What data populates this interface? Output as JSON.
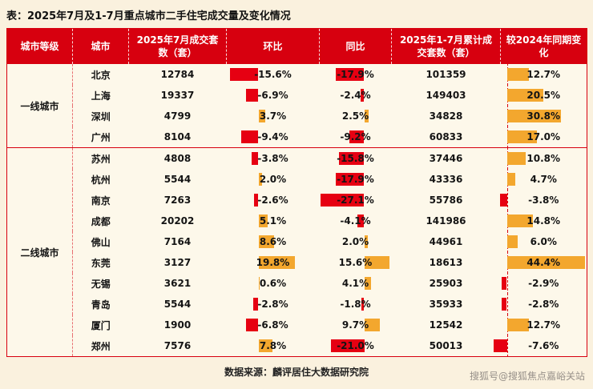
{
  "source": "数据来源：麟评居住大数据研究院",
  "watermark": "搜狐号@搜狐焦点嘉峪关站",
  "colors": {
    "header_red": "#d7000f",
    "bar_negative": "#e60012",
    "bar_positive": "#f3a72e",
    "background": "#faf1de"
  },
  "chart_data": {
    "type": "table",
    "title": "表：2025年7月及1-7月重点城市二手住宅成交量及变化情况",
    "columns": [
      "城市等级",
      "城市",
      "2025年7月成交套数（套）",
      "环比",
      "同比",
      "2025年1-7月累计成交套数（套）",
      "较2024年同期变化"
    ],
    "bar_value_unit": "%",
    "groups": [
      {
        "tier": "一线城市",
        "rows": [
          {
            "city": "北京",
            "jul": "12784",
            "mom": -15.6,
            "yoy": -17.9,
            "cum": "101359",
            "chg": 12.7
          },
          {
            "city": "上海",
            "jul": "19337",
            "mom": -6.9,
            "yoy": -2.4,
            "cum": "149403",
            "chg": 20.5
          },
          {
            "city": "深圳",
            "jul": "4799",
            "mom": 3.7,
            "yoy": 2.5,
            "cum": "34828",
            "chg": 30.8
          },
          {
            "city": "广州",
            "jul": "8104",
            "mom": -9.4,
            "yoy": -9.2,
            "cum": "60833",
            "chg": 17.0
          }
        ]
      },
      {
        "tier": "二线城市",
        "rows": [
          {
            "city": "苏州",
            "jul": "4808",
            "mom": -3.8,
            "yoy": -15.8,
            "cum": "37446",
            "chg": 10.8
          },
          {
            "city": "杭州",
            "jul": "5544",
            "mom": 2.0,
            "yoy": -17.9,
            "cum": "43336",
            "chg": 4.7
          },
          {
            "city": "南京",
            "jul": "7263",
            "mom": -2.6,
            "yoy": -27.1,
            "cum": "55786",
            "chg": -3.8
          },
          {
            "city": "成都",
            "jul": "20202",
            "mom": 5.1,
            "yoy": -4.1,
            "cum": "141986",
            "chg": 14.8
          },
          {
            "city": "佛山",
            "jul": "7164",
            "mom": 8.6,
            "yoy": 2.0,
            "cum": "44961",
            "chg": 6.0
          },
          {
            "city": "东莞",
            "jul": "3127",
            "mom": 19.8,
            "yoy": 15.6,
            "cum": "18613",
            "chg": 44.4
          },
          {
            "city": "无锡",
            "jul": "3621",
            "mom": 0.6,
            "yoy": 4.1,
            "cum": "25903",
            "chg": -2.9
          },
          {
            "city": "青岛",
            "jul": "5544",
            "mom": -2.8,
            "yoy": -1.8,
            "cum": "35933",
            "chg": -2.8
          },
          {
            "city": "厦门",
            "jul": "1900",
            "mom": -6.8,
            "yoy": 9.7,
            "cum": "12542",
            "chg": 12.7
          },
          {
            "city": "郑州",
            "jul": "7576",
            "mom": 7.8,
            "yoy": -21.0,
            "cum": "50013",
            "chg": -7.6
          }
        ]
      }
    ]
  }
}
